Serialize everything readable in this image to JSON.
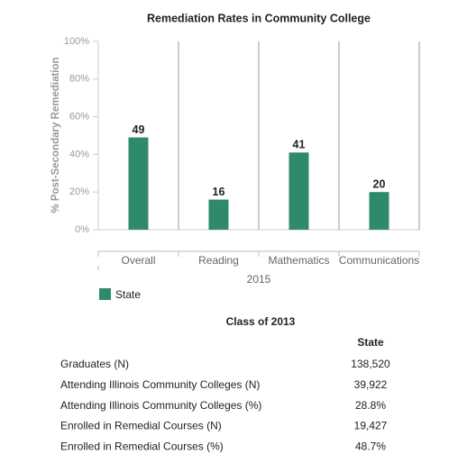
{
  "chart_data": {
    "type": "bar",
    "title": "Remediation Rates in Community College",
    "ylabel": "% Post-Secondary Remediation",
    "xlabel": "2015",
    "categories": [
      "Overall",
      "Reading",
      "Mathematics",
      "Communications"
    ],
    "series": [
      {
        "name": "State",
        "color": "#2e8a6b",
        "values": [
          49,
          16,
          41,
          20
        ]
      }
    ],
    "ylim": [
      0,
      100
    ],
    "yticks": [
      {
        "value": 0,
        "label": "0%"
      },
      {
        "value": 20,
        "label": "20%"
      },
      {
        "value": 40,
        "label": "40%"
      },
      {
        "value": 60,
        "label": "60%"
      },
      {
        "value": 80,
        "label": "80%"
      },
      {
        "value": 100,
        "label": "100%"
      }
    ]
  },
  "table": {
    "title": "Class of 2013",
    "columns": [
      "State"
    ],
    "rows": [
      [
        "Graduates (N)",
        "138,520"
      ],
      [
        "Attending Illinois Community Colleges (N)",
        "39,922"
      ],
      [
        "Attending Illinois Community Colleges (%)",
        "28.8%"
      ],
      [
        "Enrolled in Remedial Courses (N)",
        "19,427"
      ],
      [
        "Enrolled in Remedial Courses (%)",
        "48.7%"
      ]
    ]
  }
}
